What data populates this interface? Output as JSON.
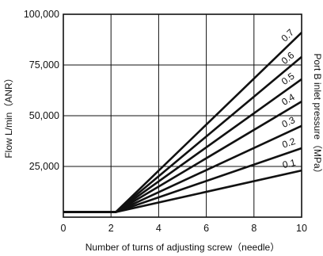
{
  "chart_data": {
    "type": "line",
    "title": "",
    "xlabel": "Number of turns of adjusting screw（needle）",
    "ylabel": "Flow  L/min（ANR）",
    "right_label": "Port B inlet pressure（MPa）",
    "xlim": [
      0,
      10
    ],
    "ylim": [
      0,
      100000
    ],
    "grid": true,
    "x_ticks": [
      0,
      2,
      4,
      6,
      8,
      10
    ],
    "y_ticks": [
      25000,
      50000,
      75000,
      100000
    ],
    "x_tick_labels": [
      "0",
      "2",
      "4",
      "6",
      "8",
      "10"
    ],
    "y_tick_labels": [
      "25,000",
      "50,000",
      "75,000",
      "100,000"
    ],
    "series": [
      {
        "name": "0.1",
        "x": [
          0,
          2.2,
          10
        ],
        "y": [
          2500,
          2500,
          23000
        ]
      },
      {
        "name": "0.2",
        "x": [
          0,
          2.2,
          10
        ],
        "y": [
          2500,
          2500,
          34000
        ]
      },
      {
        "name": "0.3",
        "x": [
          0,
          2.2,
          10
        ],
        "y": [
          2500,
          2500,
          45000
        ]
      },
      {
        "name": "0.4",
        "x": [
          0,
          2.2,
          10
        ],
        "y": [
          2500,
          2500,
          57000
        ]
      },
      {
        "name": "0.5",
        "x": [
          0,
          2.2,
          10
        ],
        "y": [
          2500,
          2500,
          68000
        ]
      },
      {
        "name": "0.6",
        "x": [
          0,
          2.2,
          10
        ],
        "y": [
          2500,
          2500,
          79000
        ]
      },
      {
        "name": "0.7",
        "x": [
          0,
          2.2,
          10
        ],
        "y": [
          2500,
          2500,
          91000
        ]
      }
    ]
  }
}
